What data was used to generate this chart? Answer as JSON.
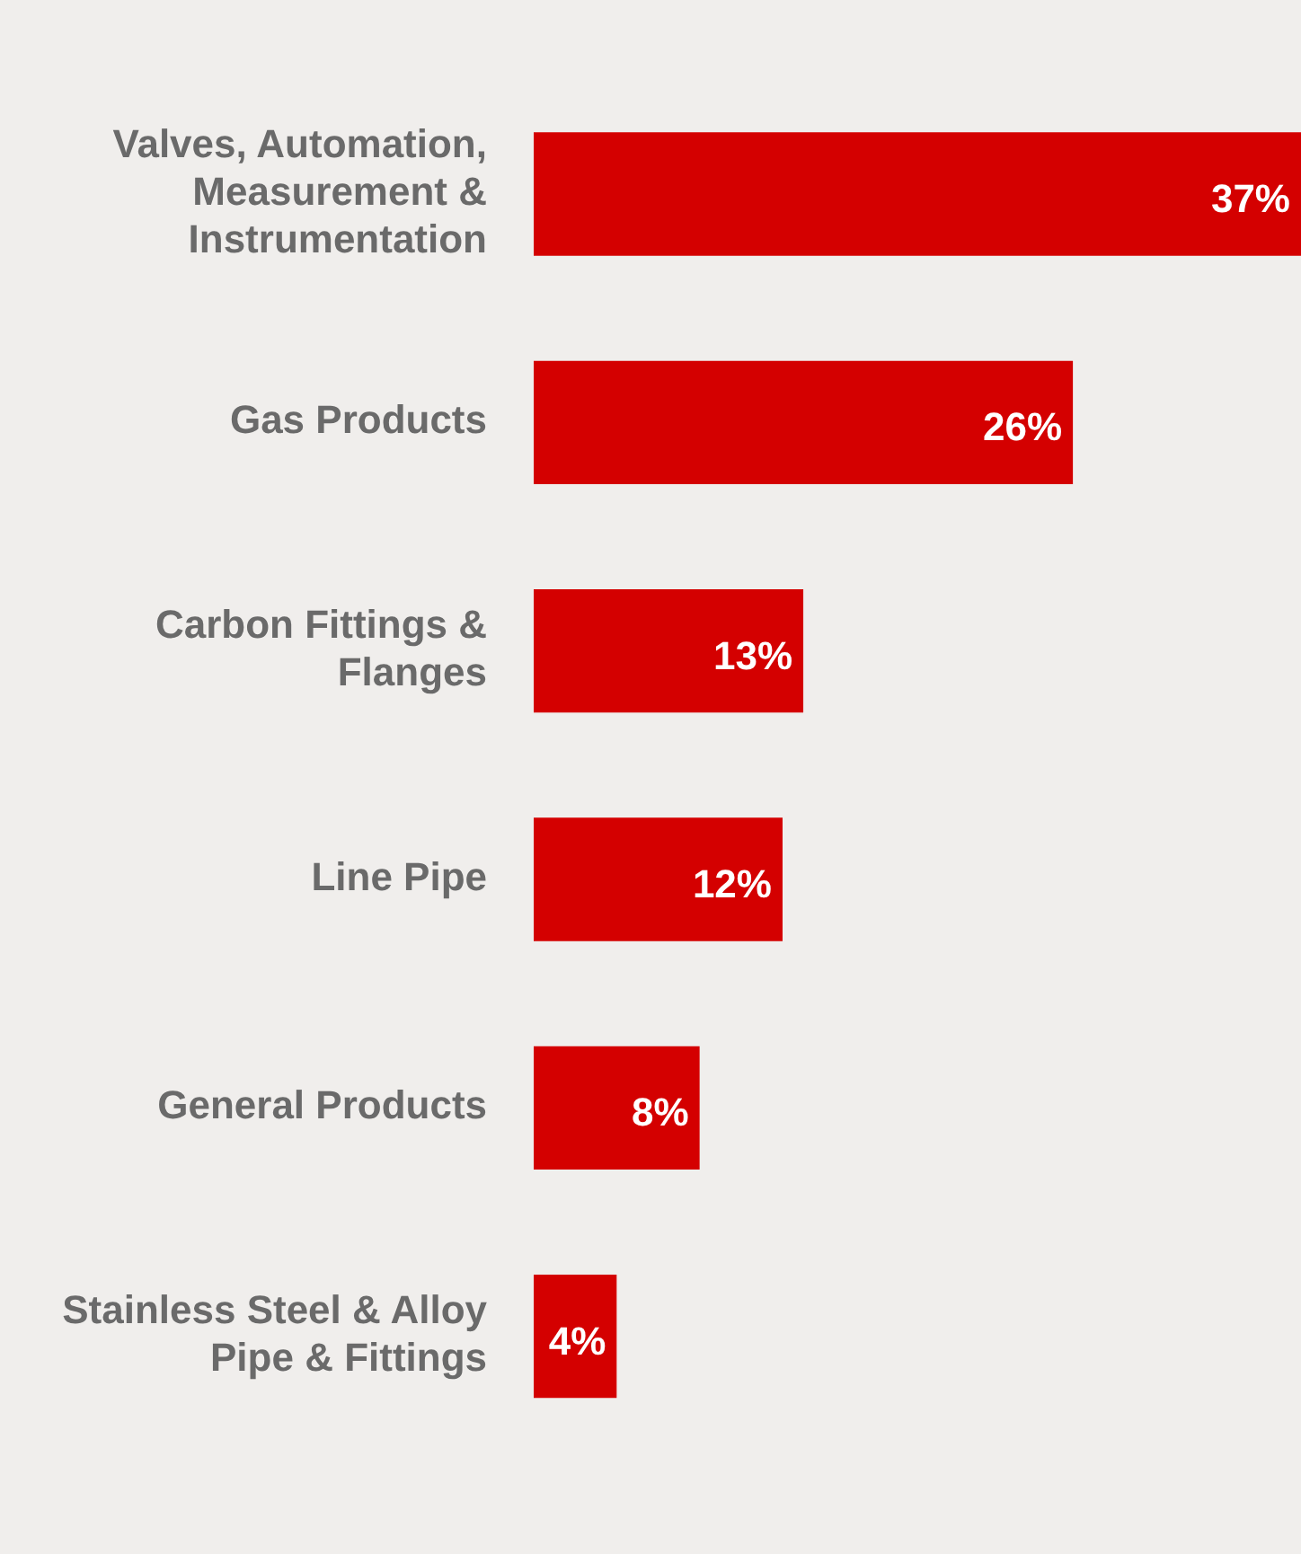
{
  "chart_data": {
    "type": "bar",
    "orientation": "horizontal",
    "categories": [
      "Valves, Automation, Measurement & Instrumentation",
      "Gas Products",
      "Carbon Fittings & Flanges",
      "Line Pipe",
      "General Products",
      "Stainless Steel & Alloy Pipe & Fittings"
    ],
    "values": [
      37,
      26,
      13,
      12,
      8,
      4
    ],
    "value_labels": [
      "37%",
      "26%",
      "13%",
      "12%",
      "8%",
      "4%"
    ],
    "color": "#d40000",
    "legend": false,
    "tick_labels": "y"
  }
}
